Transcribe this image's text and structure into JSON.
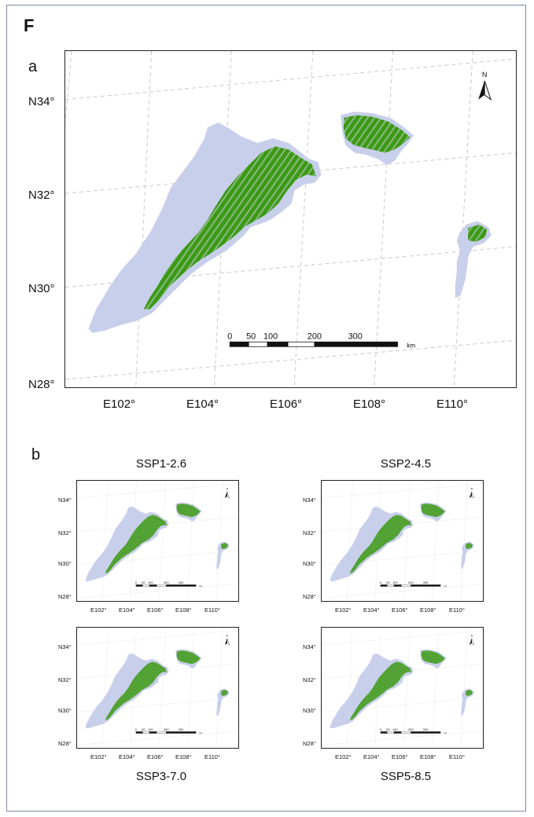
{
  "figure_label": "F",
  "panel_a": {
    "label": "a",
    "lat_labels": [
      "N34°",
      "N32°",
      "N30°",
      "N28°"
    ],
    "lon_labels": [
      "E102°",
      "E104°",
      "E106°",
      "E108°",
      "E110°"
    ],
    "north": "N",
    "scale_ticks": [
      "0",
      "50",
      "100",
      "200",
      "300"
    ],
    "scale_unit": "km"
  },
  "panel_b": {
    "label": "b",
    "maps": [
      {
        "title": "SSP1-2.6"
      },
      {
        "title": "SSP2-4.5"
      },
      {
        "title": "SSP3-7.0"
      },
      {
        "title": "SSP5-8.5"
      }
    ],
    "lat_labels": [
      "N34°",
      "N32°",
      "N30°",
      "N28°"
    ],
    "lon_labels": [
      "E102°",
      "E104°",
      "E106°",
      "E108°",
      "E110°"
    ],
    "north": "N",
    "scale_ticks": [
      "0",
      "50",
      "100",
      "200",
      "300"
    ],
    "scale_unit": "km"
  },
  "colors": {
    "region": "#c8cfeb",
    "suitable": "#3c9a12",
    "grid": "#c9c9c9",
    "frame": "#7a8aa6"
  }
}
